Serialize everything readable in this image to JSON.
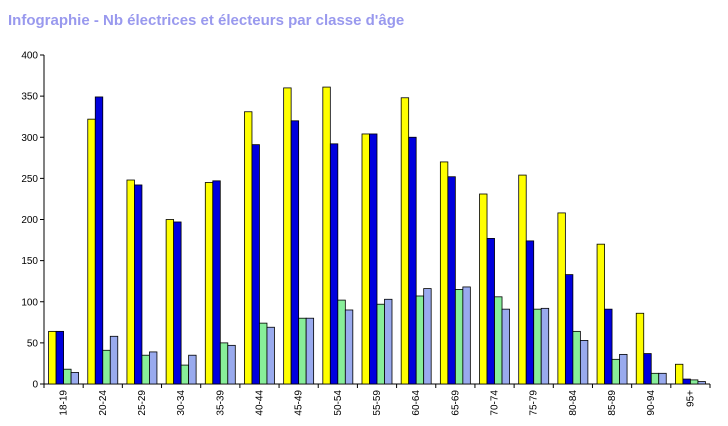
{
  "title": "Infographie - Nb électrices et électeurs par classe d'âge",
  "chart_data": {
    "type": "bar",
    "title": "Infographie - Nb électrices et électeurs par classe d'âge",
    "xlabel": "",
    "ylabel": "",
    "ylim": [
      0,
      400
    ],
    "yticks": [
      "0",
      "50",
      "100",
      "150",
      "200",
      "250",
      "300",
      "350",
      "400"
    ],
    "grid": false,
    "legend": "none",
    "categories": [
      "18-19",
      "20-24",
      "25-29",
      "30-34",
      "35-39",
      "40-44",
      "45-49",
      "50-54",
      "55-59",
      "60-64",
      "65-69",
      "70-74",
      "75-79",
      "80-84",
      "85-89",
      "90-94",
      "95+"
    ],
    "series": [
      {
        "color": "#ffff00",
        "values": [
          64,
          322,
          248,
          200,
          245,
          331,
          360,
          361,
          304,
          348,
          270,
          231,
          254,
          208,
          170,
          86,
          24
        ]
      },
      {
        "color": "#0000dd",
        "values": [
          64,
          349,
          242,
          197,
          247,
          291,
          320,
          292,
          304,
          300,
          252,
          177,
          174,
          133,
          91,
          37,
          6
        ]
      },
      {
        "color": "#88ee99",
        "values": [
          18,
          41,
          35,
          23,
          50,
          74,
          80,
          102,
          97,
          107,
          115,
          106,
          91,
          64,
          30,
          13,
          5
        ]
      },
      {
        "color": "#99aaee",
        "values": [
          14,
          58,
          39,
          35,
          47,
          69,
          80,
          90,
          103,
          116,
          118,
          91,
          92,
          53,
          36,
          13,
          3
        ]
      }
    ]
  }
}
